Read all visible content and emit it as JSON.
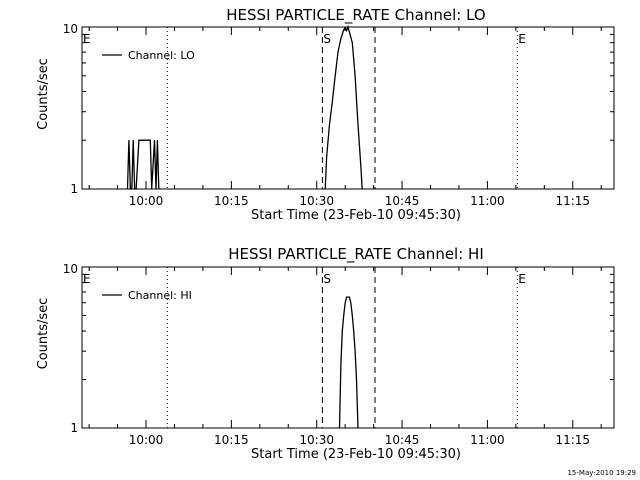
{
  "chart_data": [
    {
      "type": "line",
      "title": "HESSI PARTICLE_RATE Channel: LO",
      "xlabel": "Start Time (23-Feb-10 09:45:30)",
      "ylabel": "Counts/sec",
      "y_scale": "log",
      "ylim": [
        1,
        10
      ],
      "y_ticks": [
        1,
        10
      ],
      "y_tick_labels": [
        "1",
        "10"
      ],
      "x_ticks": [
        "10:00",
        "10:15",
        "10:30",
        "10:45",
        "11:00",
        "11:15"
      ],
      "xlim": [
        "09:48:45",
        "11:22:15"
      ],
      "legend": [
        "Channel: LO"
      ],
      "legend_position": "top-left",
      "markers": [
        {
          "label": "E",
          "time": "09:48:45",
          "style": "dotted"
        },
        {
          "label": "",
          "time": "10:03:45",
          "style": "dotted"
        },
        {
          "label": "S",
          "time": "10:31:00",
          "style": "dashed"
        },
        {
          "label": "",
          "time": "10:40:15",
          "style": "dashed"
        },
        {
          "label": "E",
          "time": "11:05:15",
          "style": "dotted"
        },
        {
          "label": "",
          "time": "11:22:15",
          "style": "dotted"
        }
      ],
      "series": [
        {
          "name": "Channel: LO",
          "segments": [
            [
              {
                "t": "09:56:45",
                "y": 1
              },
              {
                "t": "09:57:00",
                "y": 2
              },
              {
                "t": "09:57:15",
                "y": 1
              },
              {
                "t": "09:57:30",
                "y": 1
              },
              {
                "t": "09:57:45",
                "y": 2
              },
              {
                "t": "09:58:00",
                "y": 1
              },
              {
                "t": "09:58:15",
                "y": 1
              },
              {
                "t": "09:58:45",
                "y": 2
              },
              {
                "t": "10:00:45",
                "y": 2
              },
              {
                "t": "10:01:00",
                "y": 1
              },
              {
                "t": "10:01:30",
                "y": 2
              },
              {
                "t": "10:01:45",
                "y": 1
              },
              {
                "t": "10:02:00",
                "y": 2
              },
              {
                "t": "10:02:15",
                "y": 1
              }
            ],
            [
              {
                "t": "10:31:30",
                "y": 1
              },
              {
                "t": "10:31:45",
                "y": 1.6
              },
              {
                "t": "10:32:15",
                "y": 2.5
              },
              {
                "t": "10:32:45",
                "y": 3.5
              },
              {
                "t": "10:33:15",
                "y": 5
              },
              {
                "t": "10:33:45",
                "y": 7
              },
              {
                "t": "10:34:15",
                "y": 8.5
              },
              {
                "t": "10:34:45",
                "y": 9.6
              },
              {
                "t": "10:35:00",
                "y": 9.9
              },
              {
                "t": "10:35:15",
                "y": 9.5
              },
              {
                "t": "10:35:30",
                "y": 10
              },
              {
                "t": "10:35:45",
                "y": 9.3
              },
              {
                "t": "10:36:15",
                "y": 8
              },
              {
                "t": "10:36:45",
                "y": 5
              },
              {
                "t": "10:37:15",
                "y": 2.5
              },
              {
                "t": "10:37:45",
                "y": 1.4
              },
              {
                "t": "10:38:00",
                "y": 1
              }
            ]
          ]
        }
      ]
    },
    {
      "type": "line",
      "title": "HESSI PARTICLE_RATE Channel: HI",
      "xlabel": "Start Time (23-Feb-10 09:45:30)",
      "ylabel": "Counts/sec",
      "y_scale": "log",
      "ylim": [
        1,
        10
      ],
      "y_ticks": [
        1,
        10
      ],
      "y_tick_labels": [
        "1",
        "10"
      ],
      "x_ticks": [
        "10:00",
        "10:15",
        "10:30",
        "10:45",
        "11:00",
        "11:15"
      ],
      "xlim": [
        "09:48:45",
        "11:22:15"
      ],
      "legend": [
        "Channel: HI"
      ],
      "legend_position": "top-left",
      "markers": [
        {
          "label": "E",
          "time": "09:48:45",
          "style": "dotted"
        },
        {
          "label": "",
          "time": "10:03:45",
          "style": "dotted"
        },
        {
          "label": "S",
          "time": "10:31:00",
          "style": "dashed"
        },
        {
          "label": "",
          "time": "10:40:15",
          "style": "dashed"
        },
        {
          "label": "E",
          "time": "11:05:15",
          "style": "dotted"
        },
        {
          "label": "",
          "time": "11:22:15",
          "style": "dotted"
        }
      ],
      "series": [
        {
          "name": "Channel: HI",
          "segments": [
            [
              {
                "t": "10:34:00",
                "y": 1
              },
              {
                "t": "10:34:15",
                "y": 2.5
              },
              {
                "t": "10:34:30",
                "y": 4
              },
              {
                "t": "10:34:45",
                "y": 5
              },
              {
                "t": "10:35:00",
                "y": 6
              },
              {
                "t": "10:35:15",
                "y": 6.5
              },
              {
                "t": "10:35:45",
                "y": 6.5
              },
              {
                "t": "10:36:00",
                "y": 6
              },
              {
                "t": "10:36:15",
                "y": 5
              },
              {
                "t": "10:36:30",
                "y": 4
              },
              {
                "t": "10:36:45",
                "y": 3
              },
              {
                "t": "10:37:00",
                "y": 2
              },
              {
                "t": "10:37:15",
                "y": 1
              }
            ]
          ]
        }
      ]
    }
  ],
  "footer": {
    "timestamp": "15-May-2010 19:29"
  }
}
